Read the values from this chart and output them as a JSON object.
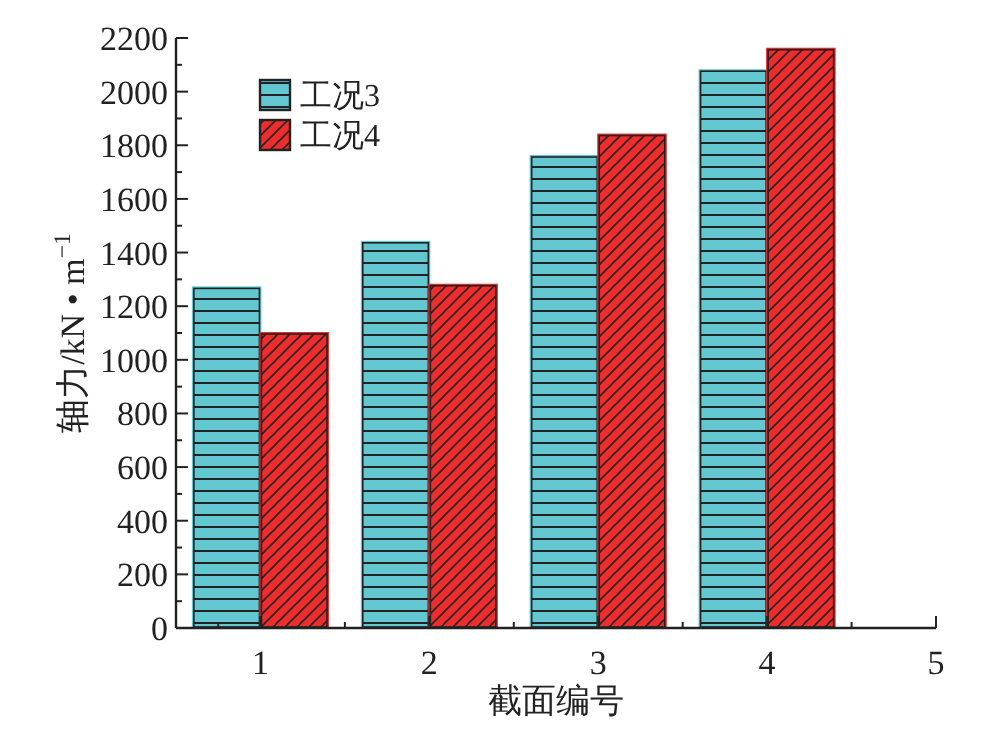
{
  "chart_data": {
    "type": "bar",
    "xlabel": "截面编号",
    "ylabel": "轴力/kN • m$^{−1}$",
    "x": [
      1,
      2,
      3,
      4
    ],
    "xlim": [
      0.5,
      5
    ],
    "xticks": [
      1,
      2,
      3,
      4,
      5
    ],
    "ylim": [
      0,
      2200
    ],
    "yticks": [
      0,
      200,
      400,
      600,
      800,
      1000,
      1200,
      1400,
      1600,
      1800,
      2000,
      2200
    ],
    "legend": "top left",
    "grid": false,
    "series": [
      {
        "name": "工况3",
        "color": "#63c7d1",
        "values": [
          1270,
          1440,
          1760,
          2080
        ]
      },
      {
        "name": "工况4",
        "color": "#ee2c2c",
        "values": [
          1100,
          1280,
          1840,
          2160
        ]
      }
    ]
  }
}
